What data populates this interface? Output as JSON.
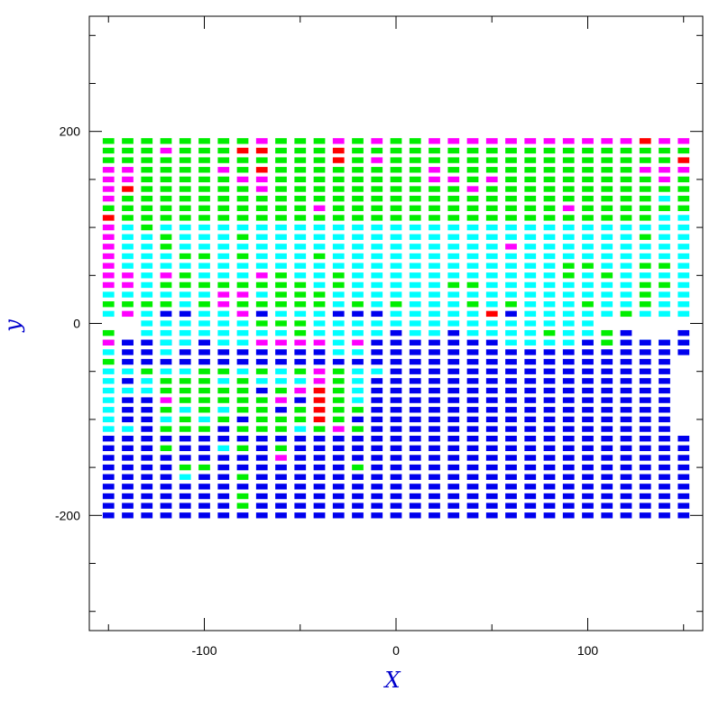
{
  "chart_data": {
    "type": "heatmap",
    "title": "",
    "xlabel": "X",
    "ylabel": "y",
    "xlim": [
      -160,
      160
    ],
    "ylim": [
      -320,
      320
    ],
    "x_ticks": [
      -100,
      0,
      100
    ],
    "x_tick_labels": [
      "-100",
      "0",
      "100"
    ],
    "y_ticks": [
      -200,
      0,
      200
    ],
    "y_tick_labels": [
      "-200",
      "0",
      "200"
    ],
    "x_minor_step": 50,
    "y_minor_step": 50,
    "grid": false,
    "legend": "none",
    "label_color": "#0000cc",
    "palette": {
      "b": "#0000ee",
      "c": "#00ffff",
      "g": "#00ee00",
      "m": "#ff00ff",
      "r": "#ff0000"
    },
    "cell": {
      "x_step": 10,
      "y_step": 10,
      "width": 6,
      "height": 6
    },
    "columns_x": [
      -150,
      -140,
      -130,
      -120,
      -110,
      -100,
      -90,
      -80,
      -70,
      -60,
      -50,
      -40,
      -30,
      -20,
      -10,
      0,
      10,
      20,
      30,
      40,
      50,
      60,
      70,
      80,
      90,
      100,
      110,
      120,
      130,
      140,
      150
    ],
    "upper_rows_y_top": 190,
    "upper_rows": [
      "ggggggggmgggmgmggmmmmmmmmmmmrmm",
      "gggmgggrrgggrgggggggggggggggggg",
      "ggggggggggggrgmgggggggggggggggr",
      "mmggggmgrggggggggmggggggggggmmm",
      "mmgggggmmggggggggmmgmggggggggmg",
      "mrggggggmggggggggggmggggggggggg",
      "mggggggggggggggggggggggggggggcg",
      "gggggggggggmggggggggggggmgggggg",
      "rggggggggggggggggggggggggggggcc",
      "mcgcccccccccccccccccccccccccccc",
      "mccgcccgccccccccccccccccccccgcc",
      "mccgcccccccccccccccccmccccccccc",
      "mcccggcgcccgccccccccccccccccccc",
      "mcccccccccccccccccccccccggccggc",
      "mmcmgcccmgccgcccccccccccgcgcccc",
      "mmcggggggggcgcccccggccccccccggc",
      "ccccccmmcgggccccccccccccccccgcc",
      "ggggcgmgggggcgcgcccgcgcccgccgcc",
      "cmcbbccmbcccbbbcccccrbcccccgccc",
      "  ccccccgggccccccccccccccc     ",
      "  ccccccccgccccbccbccccgccgb   ",
      "gbbbbbccmmmmcmbbbbbbbcccccccccc"
    ],
    "lower_rows_y_top": -10,
    "lower_rows": [
      "g                             b",
      "mbbccbc                  bgbbbb",
      "cbbcbbbbbbbbccbbbbbbbbbbbbbbbbb",
      "gbbbbbbbbbbbbbbbbbbbbbbbbbbbbb ",
      "ccgccggcgcgmgccbbbbbbbbbbbbbbb ",
      "cbcgggcgcccmgcbbbbbbbbbbbbbbbb ",
      "cccgggggbgmrgcbbbbbbbbbbbbbbbb ",
      "cbbmgggggmbrgcbbbbbbbbbbbbbbbb ",
      "cbbgcgcggbgrggbbbbbbbbbbbbbbbb ",
      "cbbcgcgbgggrgbbbbbbbbbbbbbbbbb ",
      "ccbgggbgggcgmgbbbbbbbbbbbbbbbb ",
      "bbbbbbbbbbbbbbbbbbbbbbbbbbbbbbb",
      "bbbgbbcgbgbbbbbbbbbbbbbbbbbbbbb",
      "bbbbbbbbbmbbbbbbbbbbbbbbbbbbbbb",
      "bbbbggbbbbbbbgbbbbbbbbbbbbbbbbb",
      "bbbbcbbgbbbbbbbbbbbbbbbbbbbbbbb",
      "bbbbbbbbbbbbbbbbbbbbbbbbbbbbbbb",
      "bbbbbbbgbbbbbbbbbbbbbbbbbbbbbbb",
      "bbbbbbbgbbbbbbbbbbbbbbbbbbbbbbb",
      "bbbbbbbbbbbbbbbbbbbbbbbbbbbbbbb"
    ]
  }
}
